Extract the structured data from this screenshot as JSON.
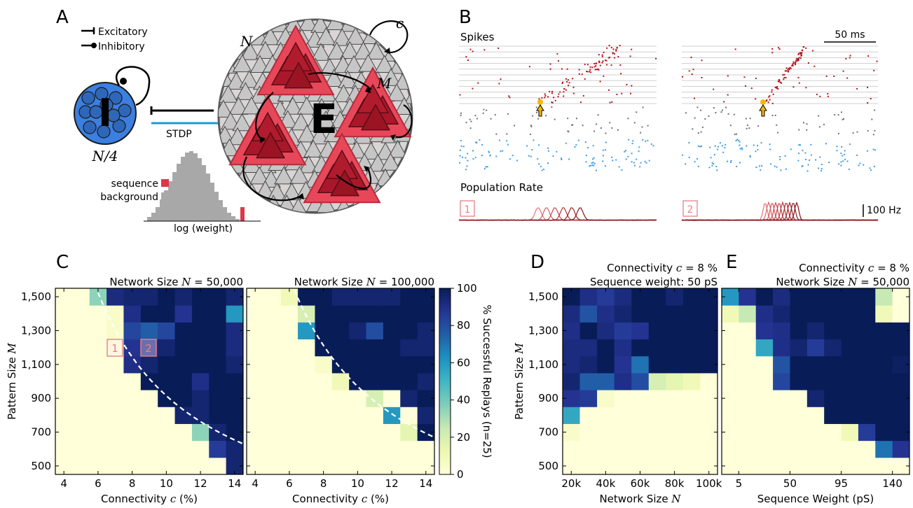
{
  "panel_letters": [
    "A",
    "B",
    "C",
    "D",
    "E"
  ],
  "colors": {
    "excit_red": "#d9394b",
    "inhib_blue": "#3b7fe0",
    "stdp_blue": "#1a9ad6",
    "hist_gray": "#a8a8a8",
    "raster_red": "#b5121b",
    "raster_gray": "#707070",
    "raster_blue": "#3a9be8",
    "marker_yellow": "#f5b700"
  },
  "panelA": {
    "legend": {
      "excitatory": "Excitatory",
      "inhibitory": "Inhibitory"
    },
    "inhib_label": "I",
    "inhib_size": "N/4",
    "stdp": "STDP",
    "excit_label": "E",
    "net_size": "N",
    "pattern_size": "M",
    "connectivity": "c",
    "hist_legend": {
      "sequence": "sequence",
      "background": "background"
    },
    "hist_xlabel": "log (weight)",
    "hist_heights": [
      0.06,
      0.12,
      0.2,
      0.31,
      0.44,
      0.57,
      0.7,
      0.82,
      0.92,
      0.98,
      1.0,
      0.97,
      0.9,
      0.8,
      0.68,
      0.55,
      0.42,
      0.3,
      0.2,
      0.12,
      0.07,
      0.03
    ],
    "sequence_height": 0.2
  },
  "panelB": {
    "spikes_label": "Spikes",
    "scalebar_time": "50 ms",
    "rate_label": "Population Rate",
    "scalebar_rate": "100 Hz",
    "trials": [
      "1",
      "2"
    ]
  },
  "colorbar": {
    "label": "% Successful Replays (n=25)",
    "ticks": [
      "0",
      "20",
      "40",
      "60",
      "80",
      "100"
    ]
  },
  "chart_data": [
    {
      "type": "heatmap",
      "id": "C-left",
      "title": "Network Size N = 50,000",
      "title_parts": [
        "Network Size ",
        "N",
        " = 50,000"
      ],
      "xlabel_parts": [
        "Connectivity ",
        "c",
        " (%)"
      ],
      "ylabel_parts": [
        "Pattern Size ",
        "M"
      ],
      "x_ticks": [
        "4",
        "6",
        "8",
        "10",
        "12",
        "14"
      ],
      "y_ticks": [
        "500",
        "700",
        "900",
        "1,100",
        "1,300",
        "1,500"
      ],
      "x_range": [
        3.5,
        14.5
      ],
      "y_range": [
        450,
        1550
      ],
      "cols": 11,
      "rows": 11,
      "annotations": [
        "1",
        "2"
      ],
      "values": [
        [
          0,
          0,
          0,
          0,
          0,
          0,
          0,
          0,
          0,
          0,
          95
        ],
        [
          0,
          0,
          0,
          0,
          0,
          0,
          0,
          0,
          0,
          85,
          95
        ],
        [
          0,
          0,
          0,
          0,
          0,
          0,
          0,
          0,
          35,
          95,
          100
        ],
        [
          0,
          0,
          0,
          0,
          0,
          0,
          0,
          95,
          95,
          100,
          100
        ],
        [
          0,
          0,
          0,
          0,
          0,
          0,
          100,
          100,
          95,
          100,
          100
        ],
        [
          0,
          0,
          0,
          0,
          0,
          100,
          100,
          100,
          90,
          100,
          100
        ],
        [
          0,
          0,
          0,
          0,
          90,
          95,
          100,
          100,
          100,
          100,
          95
        ],
        [
          0,
          0,
          0,
          0,
          88,
          90,
          95,
          100,
          100,
          100,
          92
        ],
        [
          0,
          0,
          0,
          5,
          82,
          75,
          82,
          100,
          100,
          100,
          92
        ],
        [
          0,
          0,
          0,
          5,
          90,
          100,
          100,
          88,
          100,
          100,
          60
        ],
        [
          0,
          0,
          35,
          92,
          95,
          95,
          100,
          95,
          100,
          100,
          95
        ]
      ]
    },
    {
      "type": "heatmap",
      "id": "C-right",
      "title": "Network Size N = 100,000",
      "title_parts": [
        "Network Size ",
        "N",
        " = 100,000"
      ],
      "xlabel_parts": [
        "Connectivity ",
        "c",
        " (%)"
      ],
      "x_ticks": [
        "4",
        "6",
        "8",
        "10",
        "12",
        "14"
      ],
      "x_range": [
        3.5,
        14.5
      ],
      "y_range": [
        450,
        1550
      ],
      "cols": 11,
      "rows": 11,
      "values": [
        [
          0,
          0,
          0,
          0,
          0,
          0,
          0,
          0,
          0,
          0,
          0
        ],
        [
          0,
          0,
          0,
          0,
          0,
          0,
          0,
          0,
          0,
          0,
          0
        ],
        [
          0,
          0,
          0,
          0,
          0,
          0,
          0,
          0,
          0,
          15,
          100
        ],
        [
          0,
          0,
          0,
          0,
          0,
          0,
          0,
          0,
          60,
          0,
          95
        ],
        [
          0,
          0,
          0,
          0,
          0,
          0,
          0,
          20,
          0,
          95,
          100
        ],
        [
          0,
          0,
          0,
          0,
          0,
          10,
          100,
          100,
          100,
          100,
          95
        ],
        [
          0,
          0,
          0,
          0,
          5,
          100,
          100,
          100,
          100,
          100,
          100
        ],
        [
          0,
          0,
          0,
          0,
          100,
          100,
          100,
          100,
          100,
          95,
          95
        ],
        [
          0,
          0,
          0,
          60,
          100,
          100,
          95,
          80,
          100,
          100,
          95
        ],
        [
          0,
          0,
          0,
          20,
          100,
          100,
          100,
          100,
          100,
          100,
          100
        ],
        [
          0,
          0,
          10,
          100,
          100,
          95,
          95,
          95,
          95,
          100,
          100
        ]
      ]
    },
    {
      "type": "heatmap",
      "id": "D",
      "title_lines_parts": [
        [
          "Connectivity ",
          "c",
          " = 8 %"
        ],
        [
          "Sequence weight:  50 pS",
          "",
          ""
        ]
      ],
      "xlabel_parts": [
        "Network Size ",
        "N",
        ""
      ],
      "ylabel_parts": [
        "Pattern Size ",
        "M"
      ],
      "x_ticks": [
        "20k",
        "40k",
        "60k",
        "80k",
        "100k"
      ],
      "y_ticks": [
        "500",
        "700",
        "900",
        "1,100",
        "1,300",
        "1,500"
      ],
      "x_range": [
        15000,
        105000
      ],
      "y_range": [
        450,
        1550
      ],
      "cols": 9,
      "rows": 11,
      "values": [
        [
          0,
          0,
          0,
          0,
          0,
          0,
          0,
          0,
          0
        ],
        [
          0,
          0,
          0,
          0,
          0,
          0,
          0,
          0,
          0
        ],
        [
          5,
          0,
          0,
          0,
          0,
          0,
          0,
          0,
          0
        ],
        [
          55,
          0,
          0,
          0,
          0,
          0,
          0,
          0,
          0
        ],
        [
          88,
          85,
          5,
          0,
          0,
          0,
          0,
          0,
          0
        ],
        [
          95,
          75,
          75,
          90,
          80,
          20,
          15,
          10,
          0
        ],
        [
          92,
          95,
          100,
          88,
          70,
          100,
          100,
          100,
          100
        ],
        [
          92,
          92,
          100,
          90,
          100,
          100,
          100,
          100,
          100
        ],
        [
          90,
          100,
          92,
          85,
          88,
          100,
          100,
          100,
          100
        ],
        [
          92,
          78,
          90,
          95,
          100,
          100,
          100,
          100,
          100
        ],
        [
          100,
          90,
          85,
          92,
          100,
          100,
          95,
          100,
          100
        ]
      ]
    },
    {
      "type": "heatmap",
      "id": "E",
      "title_lines_parts": [
        [
          "Connectivity ",
          "c",
          " = 8 %"
        ],
        [
          "Network Size ",
          "N",
          " = 50,000"
        ]
      ],
      "xlabel": "Sequence Weight (pS)",
      "x_ticks": [
        "5",
        "50",
        "95",
        "140"
      ],
      "x_range": [
        -10,
        155
      ],
      "y_range": [
        450,
        1550
      ],
      "cols": 11,
      "rows": 11,
      "values": [
        [
          0,
          0,
          0,
          0,
          0,
          0,
          0,
          0,
          0,
          0,
          0
        ],
        [
          0,
          0,
          0,
          0,
          0,
          0,
          0,
          0,
          0,
          70,
          88
        ],
        [
          0,
          0,
          0,
          0,
          0,
          0,
          0,
          10,
          85,
          100,
          100
        ],
        [
          0,
          0,
          0,
          0,
          0,
          0,
          100,
          100,
          100,
          100,
          100
        ],
        [
          0,
          0,
          0,
          0,
          0,
          95,
          100,
          100,
          100,
          100,
          100
        ],
        [
          0,
          0,
          0,
          82,
          100,
          100,
          100,
          100,
          100,
          100,
          100
        ],
        [
          0,
          0,
          0,
          78,
          100,
          100,
          100,
          100,
          100,
          100,
          98
        ],
        [
          0,
          0,
          55,
          90,
          95,
          85,
          95,
          100,
          100,
          100,
          100
        ],
        [
          0,
          0,
          88,
          90,
          100,
          95,
          100,
          100,
          100,
          100,
          100
        ],
        [
          10,
          25,
          90,
          95,
          100,
          100,
          100,
          100,
          100,
          10,
          0
        ],
        [
          60,
          88,
          100,
          92,
          100,
          100,
          100,
          100,
          100,
          25,
          0
        ]
      ]
    }
  ]
}
